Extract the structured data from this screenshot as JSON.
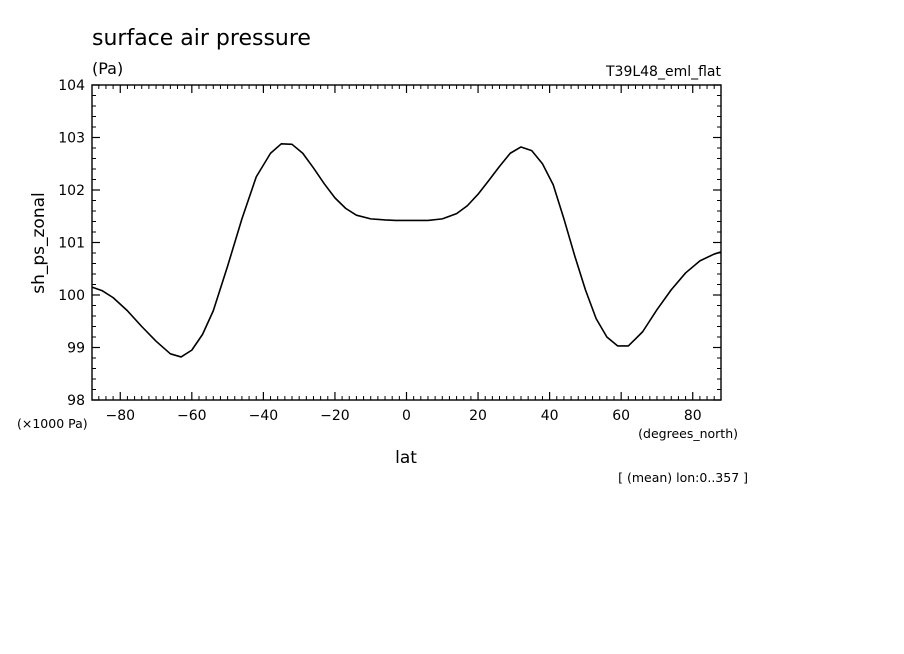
{
  "chart_data": {
    "type": "line",
    "title": "surface air pressure",
    "units": "(Pa)",
    "run_label": "T39L48_eml_flat",
    "xlabel": "lat",
    "ylabel": "sh_ps_zonal",
    "x_unit_label": "(degrees_north)",
    "y_unit_label": "(×1000 Pa)",
    "note": "[ (mean) lon:0..357 ]",
    "xlim": [
      -87.9,
      87.9
    ],
    "ylim": [
      98,
      104
    ],
    "x_ticks": [
      -80,
      -60,
      -40,
      -20,
      0,
      20,
      40,
      60,
      80
    ],
    "x_tick_labels": [
      "−80",
      "−60",
      "−40",
      "−20",
      "0",
      "20",
      "40",
      "60",
      "80"
    ],
    "y_ticks": [
      98,
      99,
      100,
      101,
      102,
      103,
      104
    ],
    "y_tick_labels": [
      "98",
      "99",
      "100",
      "101",
      "102",
      "103",
      "104"
    ],
    "grid": false,
    "series": [
      {
        "x": [
          -87.9,
          -85,
          -82,
          -78,
          -74,
          -70,
          -66,
          -63,
          -60,
          -57,
          -54,
          -50,
          -46,
          -42,
          -38,
          -35,
          -32,
          -29,
          -26,
          -23,
          -20,
          -17,
          -14,
          -10,
          -6,
          -3,
          0,
          3,
          6,
          10,
          14,
          17,
          20,
          23,
          26,
          29,
          32,
          35,
          38,
          41,
          44,
          47,
          50,
          53,
          56,
          59,
          62,
          66,
          70,
          74,
          78,
          82,
          86,
          87.9
        ],
        "y": [
          100.15,
          100.08,
          99.95,
          99.7,
          99.4,
          99.12,
          98.88,
          98.82,
          98.95,
          99.25,
          99.7,
          100.55,
          101.45,
          102.25,
          102.7,
          102.88,
          102.87,
          102.7,
          102.42,
          102.12,
          101.85,
          101.65,
          101.52,
          101.45,
          101.43,
          101.42,
          101.42,
          101.42,
          101.42,
          101.45,
          101.55,
          101.7,
          101.92,
          102.18,
          102.45,
          102.7,
          102.82,
          102.75,
          102.5,
          102.1,
          101.45,
          100.75,
          100.1,
          99.55,
          99.2,
          99.03,
          99.03,
          99.3,
          99.72,
          100.1,
          100.42,
          100.65,
          100.78,
          100.82
        ]
      }
    ]
  }
}
